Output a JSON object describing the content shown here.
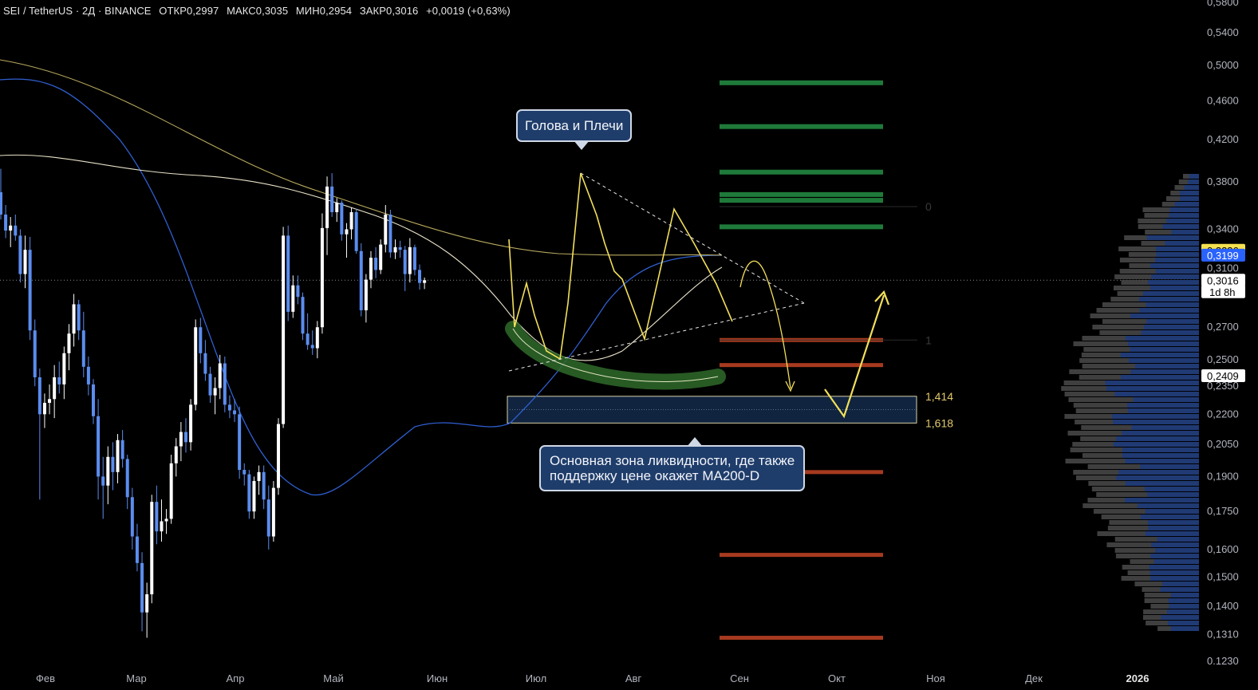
{
  "header": {
    "symbol": "SEI / TetherUS · 2Д · BINANCE",
    "open": "ОТКР0,2997",
    "high": "МАКС0,3035",
    "low": "МИН0,2954",
    "close": "ЗАКР0,3016",
    "change": "+0,0019 (+0,63%)"
  },
  "annotations": {
    "head_shoulders": "Голова и Плечи",
    "liquidity_line1": "Основная зона ликвидности, где также",
    "liquidity_line2": "поддержку цене окажет MA200-D",
    "fib_0": "0",
    "fib_1": "1",
    "fib_1414": "1,414",
    "fib_1618": "1,618"
  },
  "colors": {
    "background": "#000000",
    "candle_up": "#ffffff",
    "candle_down": "#5b8def",
    "pattern_yellow": "#f2df5a",
    "ma_blue": "#2f5fd0",
    "ma_cream": "#e8e2c8",
    "ma_gold": "#b8aa5e",
    "green_levels": "#1f7a3a",
    "red_levels": "#a63a1f",
    "liquidity_zone": "#10243f"
  },
  "chart_data": {
    "type": "candlestick",
    "pair": "SEI/USDT",
    "timeframe": "2Д",
    "price_scale": "log",
    "ylim": [
      0.123,
      0.58
    ],
    "y_ticks": [
      "0,5800",
      "0,5400",
      "0,5000",
      "0,4600",
      "0,4200",
      "0,3800",
      "0,3400",
      "0,3100",
      "0,2700",
      "0,2500",
      "0,2350",
      "0,2200",
      "0,2050",
      "0,1900",
      "0,1750",
      "0,1600",
      "0,1500",
      "0,1400",
      "0,1310",
      "0.1230"
    ],
    "x_ticks": [
      "Фев",
      "Мар",
      "Апр",
      "Май",
      "Июн",
      "Июл",
      "Авг",
      "Сен",
      "Окт",
      "Ноя",
      "Дек",
      "2026"
    ],
    "price_labels": [
      {
        "text": "0,3236",
        "value": 0.3236,
        "color": "#f5e04f",
        "fg": "#000000"
      },
      {
        "text": "0,3199",
        "value": 0.3199,
        "color": "#2962ff",
        "fg": "#ffffff"
      },
      {
        "text": "0,3016",
        "value": 0.3016,
        "color": "#ffffff",
        "fg": "#000000"
      },
      {
        "text": "1d 8h",
        "value": 0.2935,
        "color": "#ffffff",
        "fg": "#000000"
      },
      {
        "text": "0,2409",
        "value": 0.2409,
        "color": "#ffffff",
        "fg": "#000000"
      }
    ],
    "last_price": 0.3016,
    "candles": [
      {
        "o": 0.371,
        "h": 0.392,
        "l": 0.348,
        "c": 0.352
      },
      {
        "o": 0.352,
        "h": 0.36,
        "l": 0.333,
        "c": 0.339
      },
      {
        "o": 0.339,
        "h": 0.35,
        "l": 0.326,
        "c": 0.343
      },
      {
        "o": 0.343,
        "h": 0.352,
        "l": 0.331,
        "c": 0.335
      },
      {
        "o": 0.335,
        "h": 0.34,
        "l": 0.3,
        "c": 0.306
      },
      {
        "o": 0.306,
        "h": 0.335,
        "l": 0.296,
        "c": 0.324
      },
      {
        "o": 0.324,
        "h": 0.334,
        "l": 0.262,
        "c": 0.268
      },
      {
        "o": 0.268,
        "h": 0.275,
        "l": 0.235,
        "c": 0.24
      },
      {
        "o": 0.24,
        "h": 0.245,
        "l": 0.18,
        "c": 0.22
      },
      {
        "o": 0.22,
        "h": 0.231,
        "l": 0.213,
        "c": 0.226
      },
      {
        "o": 0.226,
        "h": 0.236,
        "l": 0.22,
        "c": 0.228
      },
      {
        "o": 0.228,
        "h": 0.247,
        "l": 0.218,
        "c": 0.24
      },
      {
        "o": 0.24,
        "h": 0.249,
        "l": 0.231,
        "c": 0.236
      },
      {
        "o": 0.236,
        "h": 0.258,
        "l": 0.228,
        "c": 0.254
      },
      {
        "o": 0.254,
        "h": 0.272,
        "l": 0.244,
        "c": 0.266
      },
      {
        "o": 0.266,
        "h": 0.292,
        "l": 0.258,
        "c": 0.285
      },
      {
        "o": 0.285,
        "h": 0.288,
        "l": 0.262,
        "c": 0.268
      },
      {
        "o": 0.268,
        "h": 0.28,
        "l": 0.24,
        "c": 0.246
      },
      {
        "o": 0.246,
        "h": 0.252,
        "l": 0.23,
        "c": 0.236
      },
      {
        "o": 0.236,
        "h": 0.239,
        "l": 0.215,
        "c": 0.219
      },
      {
        "o": 0.219,
        "h": 0.228,
        "l": 0.18,
        "c": 0.19
      },
      {
        "o": 0.19,
        "h": 0.199,
        "l": 0.172,
        "c": 0.186
      },
      {
        "o": 0.186,
        "h": 0.204,
        "l": 0.178,
        "c": 0.199
      },
      {
        "o": 0.199,
        "h": 0.206,
        "l": 0.184,
        "c": 0.192
      },
      {
        "o": 0.192,
        "h": 0.21,
        "l": 0.187,
        "c": 0.207
      },
      {
        "o": 0.207,
        "h": 0.212,
        "l": 0.194,
        "c": 0.198
      },
      {
        "o": 0.198,
        "h": 0.2,
        "l": 0.176,
        "c": 0.181
      },
      {
        "o": 0.181,
        "h": 0.185,
        "l": 0.16,
        "c": 0.165
      },
      {
        "o": 0.165,
        "h": 0.17,
        "l": 0.152,
        "c": 0.155
      },
      {
        "o": 0.155,
        "h": 0.159,
        "l": 0.132,
        "c": 0.138
      },
      {
        "o": 0.138,
        "h": 0.148,
        "l": 0.13,
        "c": 0.144
      },
      {
        "o": 0.144,
        "h": 0.182,
        "l": 0.141,
        "c": 0.179
      },
      {
        "o": 0.179,
        "h": 0.186,
        "l": 0.162,
        "c": 0.167
      },
      {
        "o": 0.167,
        "h": 0.18,
        "l": 0.163,
        "c": 0.171
      },
      {
        "o": 0.171,
        "h": 0.176,
        "l": 0.166,
        "c": 0.172
      },
      {
        "o": 0.172,
        "h": 0.2,
        "l": 0.17,
        "c": 0.196
      },
      {
        "o": 0.196,
        "h": 0.208,
        "l": 0.19,
        "c": 0.204
      },
      {
        "o": 0.204,
        "h": 0.216,
        "l": 0.197,
        "c": 0.211
      },
      {
        "o": 0.211,
        "h": 0.218,
        "l": 0.201,
        "c": 0.206
      },
      {
        "o": 0.206,
        "h": 0.228,
        "l": 0.202,
        "c": 0.225
      },
      {
        "o": 0.225,
        "h": 0.275,
        "l": 0.222,
        "c": 0.27
      },
      {
        "o": 0.27,
        "h": 0.276,
        "l": 0.248,
        "c": 0.254
      },
      {
        "o": 0.254,
        "h": 0.262,
        "l": 0.238,
        "c": 0.242
      },
      {
        "o": 0.242,
        "h": 0.246,
        "l": 0.226,
        "c": 0.23
      },
      {
        "o": 0.23,
        "h": 0.24,
        "l": 0.22,
        "c": 0.234
      },
      {
        "o": 0.234,
        "h": 0.253,
        "l": 0.228,
        "c": 0.248
      },
      {
        "o": 0.248,
        "h": 0.252,
        "l": 0.221,
        "c": 0.225
      },
      {
        "o": 0.225,
        "h": 0.23,
        "l": 0.218,
        "c": 0.222
      },
      {
        "o": 0.222,
        "h": 0.228,
        "l": 0.216,
        "c": 0.22
      },
      {
        "o": 0.22,
        "h": 0.224,
        "l": 0.189,
        "c": 0.193
      },
      {
        "o": 0.193,
        "h": 0.196,
        "l": 0.186,
        "c": 0.191
      },
      {
        "o": 0.191,
        "h": 0.193,
        "l": 0.172,
        "c": 0.175
      },
      {
        "o": 0.175,
        "h": 0.19,
        "l": 0.172,
        "c": 0.188
      },
      {
        "o": 0.188,
        "h": 0.195,
        "l": 0.182,
        "c": 0.192
      },
      {
        "o": 0.192,
        "h": 0.195,
        "l": 0.176,
        "c": 0.18
      },
      {
        "o": 0.18,
        "h": 0.186,
        "l": 0.16,
        "c": 0.165
      },
      {
        "o": 0.165,
        "h": 0.188,
        "l": 0.163,
        "c": 0.185
      },
      {
        "o": 0.185,
        "h": 0.218,
        "l": 0.182,
        "c": 0.215
      },
      {
        "o": 0.215,
        "h": 0.342,
        "l": 0.213,
        "c": 0.335
      },
      {
        "o": 0.335,
        "h": 0.343,
        "l": 0.274,
        "c": 0.28
      },
      {
        "o": 0.28,
        "h": 0.305,
        "l": 0.276,
        "c": 0.298
      },
      {
        "o": 0.298,
        "h": 0.305,
        "l": 0.285,
        "c": 0.29
      },
      {
        "o": 0.29,
        "h": 0.293,
        "l": 0.262,
        "c": 0.266
      },
      {
        "o": 0.266,
        "h": 0.279,
        "l": 0.256,
        "c": 0.259
      },
      {
        "o": 0.259,
        "h": 0.268,
        "l": 0.253,
        "c": 0.257
      },
      {
        "o": 0.257,
        "h": 0.274,
        "l": 0.251,
        "c": 0.27
      },
      {
        "o": 0.27,
        "h": 0.353,
        "l": 0.266,
        "c": 0.341
      },
      {
        "o": 0.341,
        "h": 0.385,
        "l": 0.32,
        "c": 0.376
      },
      {
        "o": 0.376,
        "h": 0.388,
        "l": 0.35,
        "c": 0.354
      },
      {
        "o": 0.354,
        "h": 0.366,
        "l": 0.346,
        "c": 0.362
      },
      {
        "o": 0.362,
        "h": 0.364,
        "l": 0.331,
        "c": 0.336
      },
      {
        "o": 0.336,
        "h": 0.345,
        "l": 0.318,
        "c": 0.34
      },
      {
        "o": 0.34,
        "h": 0.358,
        "l": 0.332,
        "c": 0.354
      },
      {
        "o": 0.354,
        "h": 0.357,
        "l": 0.321,
        "c": 0.323
      },
      {
        "o": 0.323,
        "h": 0.329,
        "l": 0.277,
        "c": 0.281
      },
      {
        "o": 0.281,
        "h": 0.306,
        "l": 0.273,
        "c": 0.302
      },
      {
        "o": 0.302,
        "h": 0.323,
        "l": 0.296,
        "c": 0.318
      },
      {
        "o": 0.318,
        "h": 0.326,
        "l": 0.303,
        "c": 0.309
      },
      {
        "o": 0.309,
        "h": 0.332,
        "l": 0.306,
        "c": 0.328
      },
      {
        "o": 0.328,
        "h": 0.36,
        "l": 0.322,
        "c": 0.352
      },
      {
        "o": 0.352,
        "h": 0.356,
        "l": 0.318,
        "c": 0.322
      },
      {
        "o": 0.322,
        "h": 0.332,
        "l": 0.317,
        "c": 0.326
      },
      {
        "o": 0.326,
        "h": 0.331,
        "l": 0.318,
        "c": 0.324
      },
      {
        "o": 0.324,
        "h": 0.327,
        "l": 0.294,
        "c": 0.306
      },
      {
        "o": 0.306,
        "h": 0.333,
        "l": 0.3,
        "c": 0.326
      },
      {
        "o": 0.326,
        "h": 0.328,
        "l": 0.305,
        "c": 0.309
      },
      {
        "o": 0.309,
        "h": 0.313,
        "l": 0.295,
        "c": 0.2997
      },
      {
        "o": 0.2997,
        "h": 0.3035,
        "l": 0.2954,
        "c": 0.3016
      }
    ],
    "moving_averages": [
      {
        "name": "MA-blue",
        "color": "#2f5fd0"
      },
      {
        "name": "MA-cream",
        "color": "#e8e2c8"
      },
      {
        "name": "MA-gold",
        "color": "#b8aa5e"
      }
    ],
    "horizontal_levels_green": [
      0.48,
      0.433,
      0.389,
      0.369,
      0.364,
      0.342
    ],
    "horizontal_levels_red": [
      0.262,
      0.247,
      0.192,
      0.158,
      0.13
    ],
    "fibonacci": [
      {
        "label": "0",
        "value": 0.3587
      },
      {
        "label": "1",
        "value": 0.262
      },
      {
        "label": "1,414",
        "value": 0.2295
      },
      {
        "label": "1,618",
        "value": 0.2155
      }
    ],
    "liquidity_zone": [
      0.2155,
      0.2295
    ]
  }
}
